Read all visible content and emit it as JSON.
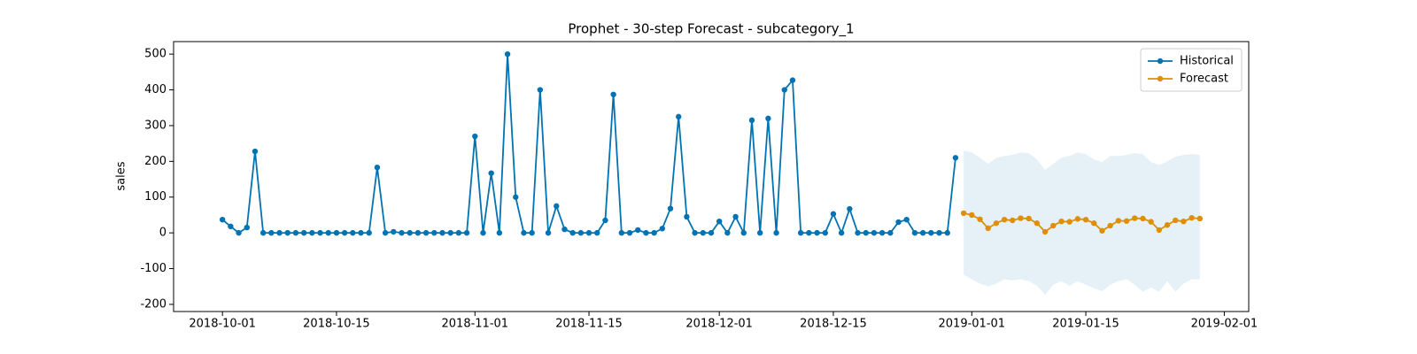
{
  "chart_data": {
    "type": "line",
    "title": "Prophet - 30-step Forecast - subcategory_1",
    "y_label": "sales",
    "legend": "upper right",
    "grid": false,
    "xlim": [
      "2018-09-25",
      "2019-02-04"
    ],
    "xticks": [
      "2018-10-01",
      "2018-10-15",
      "2018-11-01",
      "2018-11-15",
      "2018-12-01",
      "2018-12-15",
      "2019-01-01",
      "2019-01-15",
      "2019-02-01"
    ],
    "ylim": [
      -220,
      535
    ],
    "yticks": [
      -200,
      -100,
      0,
      100,
      200,
      300,
      400,
      500
    ],
    "series": [
      {
        "name": "Historical",
        "color": "#0173b2",
        "x": [
          "2018-10-01",
          "2018-10-02",
          "2018-10-03",
          "2018-10-04",
          "2018-10-05",
          "2018-10-06",
          "2018-10-07",
          "2018-10-08",
          "2018-10-09",
          "2018-10-10",
          "2018-10-11",
          "2018-10-12",
          "2018-10-13",
          "2018-10-14",
          "2018-10-15",
          "2018-10-16",
          "2018-10-17",
          "2018-10-18",
          "2018-10-19",
          "2018-10-20",
          "2018-10-21",
          "2018-10-22",
          "2018-10-23",
          "2018-10-24",
          "2018-10-25",
          "2018-10-26",
          "2018-10-27",
          "2018-10-28",
          "2018-10-29",
          "2018-10-30",
          "2018-10-31",
          "2018-11-01",
          "2018-11-02",
          "2018-11-03",
          "2018-11-04",
          "2018-11-05",
          "2018-11-06",
          "2018-11-07",
          "2018-11-08",
          "2018-11-09",
          "2018-11-10",
          "2018-11-11",
          "2018-11-12",
          "2018-11-13",
          "2018-11-14",
          "2018-11-15",
          "2018-11-16",
          "2018-11-17",
          "2018-11-18",
          "2018-11-19",
          "2018-11-20",
          "2018-11-21",
          "2018-11-22",
          "2018-11-23",
          "2018-11-24",
          "2018-11-25",
          "2018-11-26",
          "2018-11-27",
          "2018-11-28",
          "2018-11-29",
          "2018-11-30",
          "2018-12-01",
          "2018-12-02",
          "2018-12-03",
          "2018-12-04",
          "2018-12-05",
          "2018-12-06",
          "2018-12-07",
          "2018-12-08",
          "2018-12-09",
          "2018-12-10",
          "2018-12-11",
          "2018-12-12",
          "2018-12-13",
          "2018-12-14",
          "2018-12-15",
          "2018-12-16",
          "2018-12-17",
          "2018-12-18",
          "2018-12-19",
          "2018-12-20",
          "2018-12-21",
          "2018-12-22",
          "2018-12-23",
          "2018-12-24",
          "2018-12-25",
          "2018-12-26",
          "2018-12-27",
          "2018-12-28",
          "2018-12-29",
          "2018-12-30"
        ],
        "values": [
          37,
          18,
          0,
          15,
          228,
          0,
          0,
          0,
          0,
          0,
          0,
          0,
          0,
          0,
          0,
          0,
          0,
          0,
          0,
          183,
          0,
          3,
          0,
          0,
          0,
          0,
          0,
          0,
          0,
          0,
          0,
          270,
          0,
          167,
          0,
          500,
          100,
          0,
          0,
          400,
          0,
          75,
          10,
          0,
          0,
          0,
          0,
          35,
          387,
          0,
          0,
          8,
          0,
          0,
          12,
          68,
          325,
          45,
          0,
          0,
          0,
          32,
          0,
          45,
          0,
          315,
          0,
          320,
          0,
          400,
          427,
          0,
          0,
          0,
          0,
          53,
          0,
          67,
          0,
          0,
          0,
          0,
          0,
          30,
          37,
          0,
          0,
          0,
          0,
          0,
          210
        ]
      },
      {
        "name": "Forecast",
        "color": "#de8f05",
        "x": [
          "2018-12-31",
          "2019-01-01",
          "2019-01-02",
          "2019-01-03",
          "2019-01-04",
          "2019-01-05",
          "2019-01-06",
          "2019-01-07",
          "2019-01-08",
          "2019-01-09",
          "2019-01-10",
          "2019-01-11",
          "2019-01-12",
          "2019-01-13",
          "2019-01-14",
          "2019-01-15",
          "2019-01-16",
          "2019-01-17",
          "2019-01-18",
          "2019-01-19",
          "2019-01-20",
          "2019-01-21",
          "2019-01-22",
          "2019-01-23",
          "2019-01-24",
          "2019-01-25",
          "2019-01-26",
          "2019-01-27",
          "2019-01-28",
          "2019-01-29"
        ],
        "values": [
          55,
          50,
          38,
          13,
          27,
          37,
          35,
          41,
          40,
          27,
          3,
          20,
          32,
          31,
          39,
          37,
          27,
          6,
          20,
          34,
          33,
          41,
          40,
          31,
          8,
          22,
          35,
          32,
          42,
          40
        ]
      }
    ],
    "band": {
      "color": "#0173b2",
      "upper": [
        230,
        225,
        210,
        193,
        210,
        215,
        218,
        225,
        223,
        205,
        176,
        193,
        210,
        215,
        225,
        220,
        205,
        198,
        215,
        215,
        218,
        223,
        220,
        198,
        190,
        200,
        213,
        218,
        220,
        218
      ],
      "lower": [
        -117,
        -130,
        -142,
        -150,
        -142,
        -130,
        -133,
        -130,
        -135,
        -148,
        -173,
        -145,
        -135,
        -148,
        -135,
        -145,
        -155,
        -163,
        -145,
        -135,
        -130,
        -145,
        -165,
        -153,
        -165,
        -135,
        -165,
        -142,
        -130,
        -130
      ]
    }
  }
}
